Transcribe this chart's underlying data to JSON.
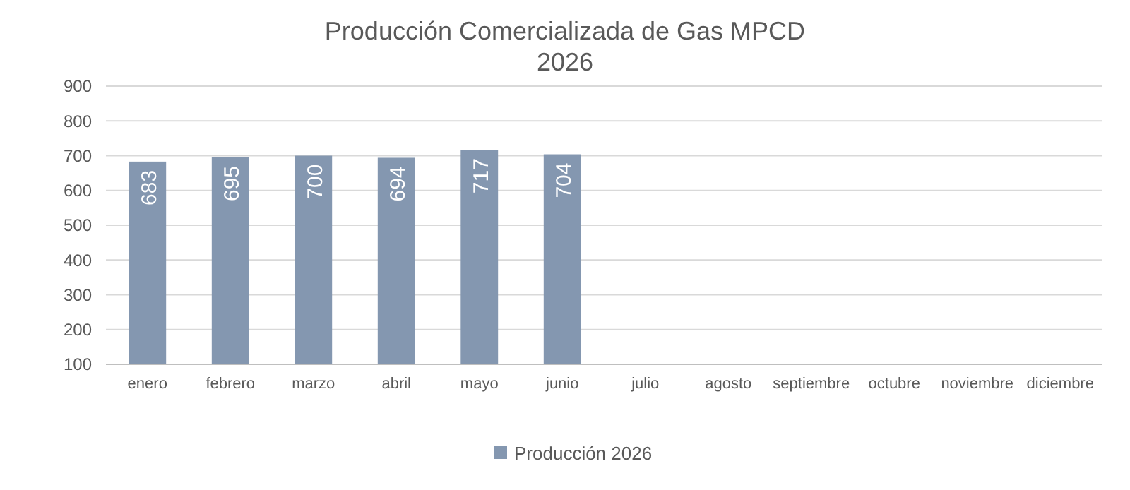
{
  "chart_data": {
    "type": "bar",
    "title": "Producción Comercializada de Gas MPCD",
    "subtitle": "2026",
    "categories": [
      "enero",
      "febrero",
      "marzo",
      "abril",
      "mayo",
      "junio",
      "julio",
      "agosto",
      "septiembre",
      "octubre",
      "noviembre",
      "diciembre"
    ],
    "series": [
      {
        "name": "Producción 2026",
        "color": "#8497b0",
        "values": [
          683,
          695,
          700,
          694,
          717,
          704,
          null,
          null,
          null,
          null,
          null,
          null
        ]
      }
    ],
    "ylim": [
      100,
      900
    ],
    "yticks": [
      100,
      200,
      300,
      400,
      500,
      600,
      700,
      800,
      900
    ],
    "grid": "y",
    "legend": "bottom",
    "data_labels": true
  }
}
